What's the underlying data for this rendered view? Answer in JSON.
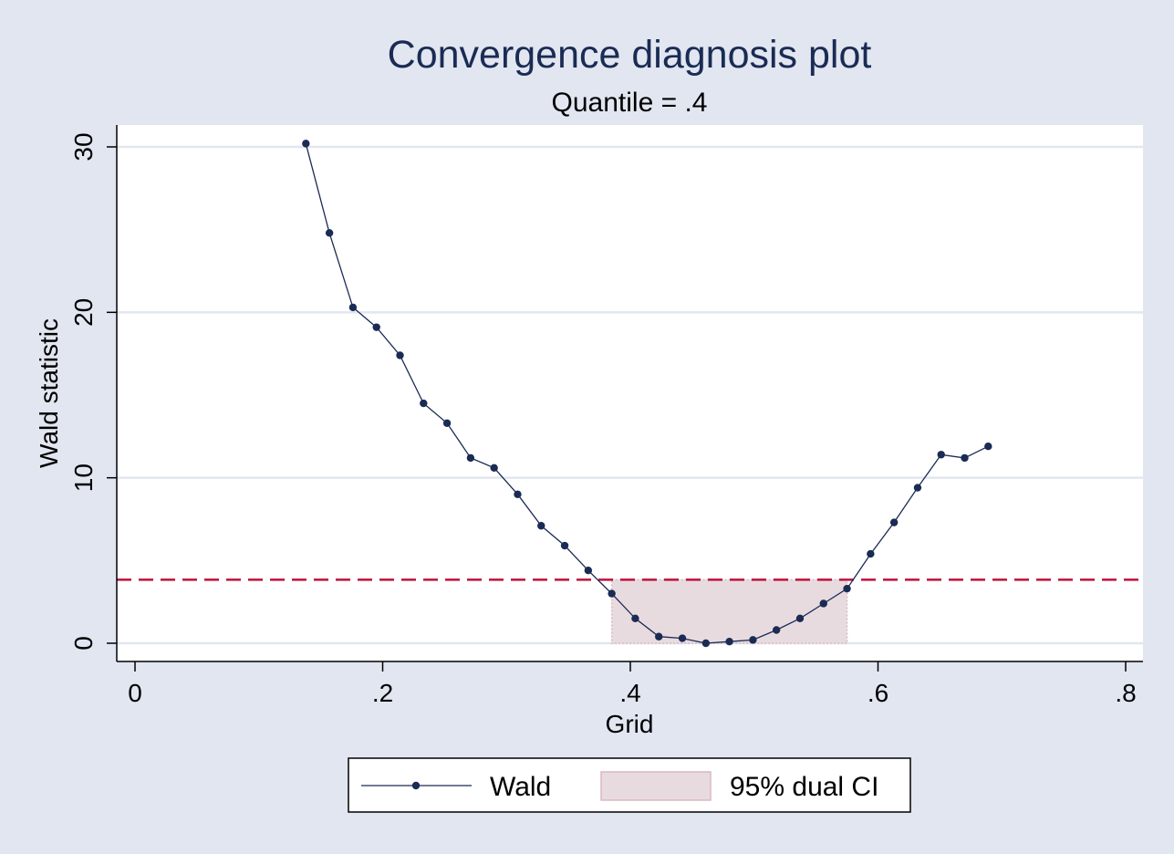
{
  "chart_data": {
    "type": "line",
    "title": "Convergence diagnosis plot",
    "subtitle": "Quantile = .4",
    "xlabel": "Grid",
    "ylabel": "Wald statistic",
    "xlim": [
      0,
      0.8
    ],
    "ylim": [
      0,
      30
    ],
    "x_ticks": [
      0,
      0.2,
      0.4,
      0.6,
      0.8
    ],
    "x_tick_labels": [
      "0",
      ".2",
      ".4",
      ".6",
      ".8"
    ],
    "y_ticks": [
      0,
      10,
      20,
      30
    ],
    "y_tick_labels": [
      "0",
      "10",
      "20",
      "30"
    ],
    "grid": "horizontal",
    "legend_position": "bottom",
    "series": [
      {
        "name": "Wald",
        "color": "#1a2b54",
        "marker": "circle",
        "x": [
          0.138,
          0.157,
          0.176,
          0.195,
          0.214,
          0.233,
          0.252,
          0.271,
          0.29,
          0.309,
          0.328,
          0.347,
          0.366,
          0.385,
          0.404,
          0.423,
          0.442,
          0.461,
          0.48,
          0.499,
          0.518,
          0.537,
          0.556,
          0.575,
          0.594,
          0.613,
          0.632,
          0.651,
          0.67,
          0.689
        ],
        "y": [
          30.2,
          24.8,
          20.3,
          19.1,
          17.4,
          14.5,
          13.3,
          11.2,
          10.6,
          9.0,
          7.1,
          5.9,
          4.4,
          3.0,
          1.5,
          0.4,
          0.3,
          0.0,
          0.1,
          0.2,
          0.8,
          1.5,
          2.4,
          3.3,
          5.4,
          7.3,
          9.4,
          11.4,
          11.2,
          11.9
        ]
      }
    ],
    "confidence_band": {
      "name": "95% dual CI",
      "x_range": [
        0.385,
        0.575
      ],
      "y_range": [
        0,
        3.84
      ],
      "fill": "#e8dbe0",
      "border": "#dcb8c0"
    },
    "reference_line": {
      "y": 3.84,
      "color": "#c0103a",
      "style": "dashed"
    }
  }
}
